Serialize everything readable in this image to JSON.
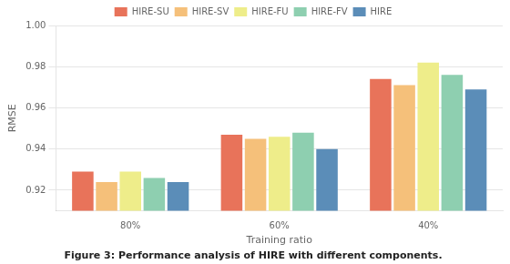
{
  "chart_data": {
    "type": "bar",
    "subtitle": "Figure 3: Performance analysis of HIRE with different components.",
    "x_label": "Training ratio",
    "y_label": "RMSE",
    "categories": [
      "80%",
      "60%",
      "40%"
    ],
    "series": [
      {
        "name": "HIRE-SU",
        "color": "#E8735A",
        "values": [
          0.929,
          0.947,
          0.974
        ]
      },
      {
        "name": "HIRE-SV",
        "color": "#F5C07A",
        "values": [
          0.924,
          0.945,
          0.971
        ]
      },
      {
        "name": "HIRE-FU",
        "color": "#EEED8A",
        "values": [
          0.929,
          0.946,
          0.982
        ]
      },
      {
        "name": "HIRE-FV",
        "color": "#8ECFB0",
        "values": [
          0.926,
          0.948,
          0.976
        ]
      },
      {
        "name": "HIRE",
        "color": "#5B8DB8",
        "values": [
          0.924,
          0.94,
          0.969
        ]
      }
    ],
    "ylim": [
      0.91,
      1.0
    ],
    "yticks": [
      0.92,
      0.94,
      0.96,
      0.98,
      {
        "value": 1.0,
        "label": "1.00"
      }
    ],
    "grid": "y",
    "legend": "top"
  }
}
